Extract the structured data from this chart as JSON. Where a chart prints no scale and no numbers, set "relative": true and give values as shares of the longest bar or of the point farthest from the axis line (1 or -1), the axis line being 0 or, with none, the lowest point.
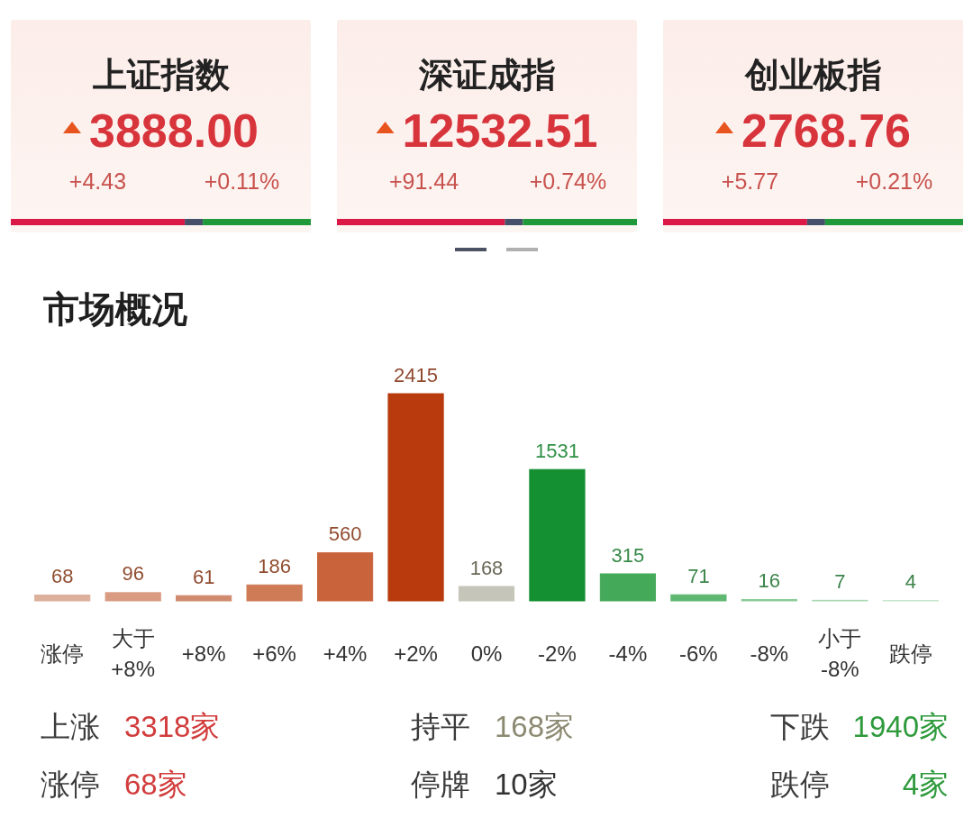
{
  "chart_data": [
    {
      "type": "bar",
      "orientation": "horizontal",
      "stacked": true,
      "relative": true,
      "title": "上证指数",
      "annotations": [
        "3888.00",
        "+4.43",
        "+0.11%"
      ],
      "categories": [
        null
      ],
      "series": [
        {
          "color": "#dc1846",
          "values": [
            0.58
          ]
        },
        {
          "color": "#46506a",
          "values": [
            0.06
          ]
        },
        {
          "color": "#20993a",
          "values": [
            0.36
          ]
        }
      ]
    },
    {
      "type": "bar",
      "orientation": "horizontal",
      "stacked": true,
      "relative": true,
      "title": "深证成指",
      "annotations": [
        "12532.51",
        "+91.44",
        "+0.74%"
      ],
      "categories": [
        null
      ],
      "series": [
        {
          "color": "#dc1846",
          "values": [
            0.56
          ]
        },
        {
          "color": "#46506a",
          "values": [
            0.06
          ]
        },
        {
          "color": "#20993a",
          "values": [
            0.38
          ]
        }
      ]
    },
    {
      "type": "bar",
      "orientation": "horizontal",
      "stacked": true,
      "relative": true,
      "title": "创业板指",
      "annotations": [
        "2768.76",
        "+5.77",
        "+0.21%"
      ],
      "categories": [
        null
      ],
      "series": [
        {
          "color": "#dc1846",
          "values": [
            0.48
          ]
        },
        {
          "color": "#46506a",
          "values": [
            0.06
          ]
        },
        {
          "color": "#20993a",
          "values": [
            0.46
          ]
        }
      ]
    },
    {
      "type": "bar",
      "title": "市场概况",
      "categories": [
        "涨停",
        "大于\n+8%",
        "+8%",
        "+6%",
        "+4%",
        "+2%",
        "0%",
        "-2%",
        "-4%",
        "-6%",
        "-8%",
        "小于\n-8%",
        "跌停"
      ],
      "values": [
        68,
        96,
        61,
        186,
        560,
        2415,
        168,
        1531,
        315,
        71,
        16,
        7,
        4
      ],
      "colors": [
        "#ddb09c",
        "#d99c83",
        "#d08b6f",
        "#cf7b56",
        "#c9633b",
        "#b93b0d",
        "#c6c5b9",
        "#148f31",
        "#45a95a",
        "#5fb871",
        "#8ccb98",
        "#a9d7b2",
        "#c3e3c9"
      ],
      "data_labels": true,
      "annotations": [
        "上涨",
        "3318家",
        "持平",
        "168家",
        "下跌",
        "1940家",
        "涨停",
        "68家",
        "停牌",
        "10家",
        "跌停",
        "4家"
      ]
    }
  ]
}
